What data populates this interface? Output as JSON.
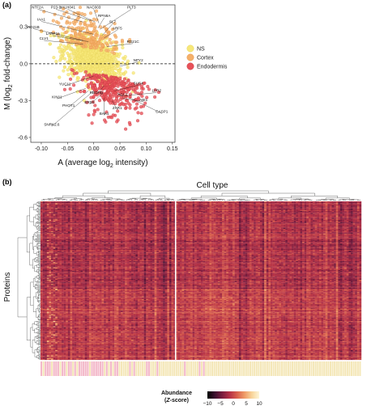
{
  "figure": {
    "panel_a_label": "(a)",
    "panel_b_label": "(b)"
  },
  "chart_data": [
    {
      "type": "scatter",
      "xlabel": "A (average log",
      "xlabel_sub": "2",
      "xlabel_end": " intensity)",
      "ylabel": "M (log",
      "ylabel_sub": "2",
      "ylabel_end": " fold-change)",
      "xlim": [
        -0.12,
        0.155
      ],
      "ylim": [
        -0.64,
        0.48
      ],
      "x_ticks": [
        -0.1,
        -0.05,
        0.0,
        0.05,
        0.1,
        0.15
      ],
      "x_tick_labels": [
        "-0.10",
        "-0.05",
        "0.00",
        "0.05",
        "0.10",
        "0.15"
      ],
      "y_ticks": [
        -0.6,
        -0.3,
        0.0,
        0.3
      ],
      "y_tick_labels": [
        "-0.6",
        "-0.3",
        "0.0",
        "0.3"
      ],
      "reference_line_y": 0.0,
      "legend_position": "right",
      "series": [
        {
          "name": "NS",
          "color": "#f7e87a",
          "stroke": "#e8d55a"
        },
        {
          "name": "Cortex",
          "color": "#f5b06a",
          "stroke": "#e6964a"
        },
        {
          "name": "Endodermis",
          "color": "#e8525a",
          "stroke": "#c9373f"
        }
      ],
      "annotations": [
        {
          "label": "NTF2A",
          "x": -0.02,
          "y": 0.34,
          "lx": -0.107,
          "ly": 0.445
        },
        {
          "label": "P23-1",
          "x": -0.005,
          "y": 0.35,
          "lx": -0.072,
          "ly": 0.445
        },
        {
          "label": "bHLH041",
          "x": 0.003,
          "y": 0.34,
          "lx": -0.05,
          "ly": 0.445
        },
        {
          "label": "NAC003",
          "x": 0.01,
          "y": 0.33,
          "lx": 0.0,
          "ly": 0.445
        },
        {
          "label": "PLT3",
          "x": 0.012,
          "y": 0.28,
          "lx": 0.072,
          "ly": 0.445
        },
        {
          "label": "RPN8A",
          "x": 0.008,
          "y": 0.29,
          "lx": 0.02,
          "ly": 0.375
        },
        {
          "label": "IAA1",
          "x": 0.0,
          "y": 0.24,
          "lx": -0.1,
          "ly": 0.345
        },
        {
          "label": "SL7",
          "x": 0.016,
          "y": 0.23,
          "lx": 0.036,
          "ly": 0.325
        },
        {
          "label": "ARF5",
          "x": 0.02,
          "y": 0.21,
          "lx": 0.045,
          "ly": 0.275
        },
        {
          "label": "RD21B",
          "x": -0.02,
          "y": 0.19,
          "lx": -0.115,
          "ly": 0.285
        },
        {
          "label": "LARP1a",
          "x": -0.01,
          "y": 0.18,
          "lx": -0.078,
          "ly": 0.23
        },
        {
          "label": "CLV1",
          "x": -0.02,
          "y": 0.16,
          "lx": -0.095,
          "ly": 0.19
        },
        {
          "label": "RD21C",
          "x": 0.025,
          "y": 0.14,
          "lx": 0.075,
          "ly": 0.165
        },
        {
          "label": "NPY2",
          "x": 0.05,
          "y": -0.02,
          "lx": 0.085,
          "ly": 0.015
        },
        {
          "label": "YUC11",
          "x": 0.0,
          "y": -0.1,
          "lx": -0.055,
          "ly": -0.18
        },
        {
          "label": "SUS4",
          "x": 0.04,
          "y": -0.22,
          "lx": 0.085,
          "ly": -0.175
        },
        {
          "label": "RBOHD",
          "x": 0.02,
          "y": -0.18,
          "lx": 0.005,
          "ly": -0.25
        },
        {
          "label": "KIN11",
          "x": -0.015,
          "y": -0.2,
          "lx": -0.07,
          "ly": -0.285
        },
        {
          "label": "AGL1",
          "x": 0.045,
          "y": -0.24,
          "lx": 0.055,
          "ly": -0.265
        },
        {
          "label": "LPR2",
          "x": 0.06,
          "y": -0.26,
          "lx": 0.12,
          "ly": -0.235
        },
        {
          "label": "ERD1",
          "x": 0.018,
          "y": -0.24,
          "lx": -0.008,
          "ly": -0.33
        },
        {
          "label": "ABI1",
          "x": 0.055,
          "y": -0.28,
          "lx": 0.095,
          "ly": -0.31
        },
        {
          "label": "PHOT1",
          "x": -0.01,
          "y": -0.22,
          "lx": -0.048,
          "ly": -0.355
        },
        {
          "label": "ZAR1",
          "x": 0.035,
          "y": -0.3,
          "lx": 0.045,
          "ly": -0.375
        },
        {
          "label": "CASP1",
          "x": 0.07,
          "y": -0.28,
          "lx": 0.13,
          "ly": -0.405
        },
        {
          "label": "BAK1",
          "x": 0.02,
          "y": -0.28,
          "lx": 0.02,
          "ly": -0.42
        },
        {
          "label": "SNRK2.6",
          "x": 0.0,
          "y": -0.22,
          "lx": -0.08,
          "ly": -0.51
        }
      ]
    },
    {
      "type": "heatmap",
      "title": "Cell type",
      "ylabel": "Proteins",
      "n_rows": 180,
      "n_cols": 152,
      "col_split_after": 63,
      "colorbar_title": "Abundance",
      "colorbar_subtitle_pre": "(",
      "colorbar_subtitle_em": "Z",
      "colorbar_subtitle_post": "-score)",
      "colorbar_ticks": [
        -10,
        -5,
        0,
        5,
        10
      ],
      "colorbar_tick_labels": [
        "−10",
        "−5",
        "0",
        "5",
        "10"
      ],
      "colorscale": [
        "#000000",
        "#3b0f2e",
        "#7a1c3e",
        "#b53046",
        "#d9604d",
        "#ef9a66",
        "#f8d49a",
        "#fdf6d8"
      ],
      "column_group_colors": {
        "Endodermis": "#f3b8c9",
        "Cortex": "#f4e7b8"
      }
    }
  ]
}
